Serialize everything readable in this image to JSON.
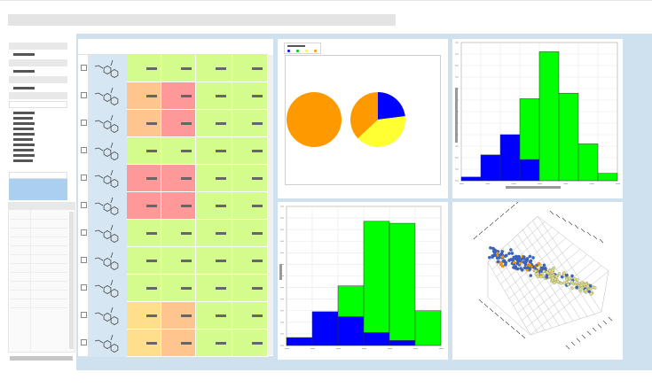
{
  "colors": {
    "accent_blue": "#abcfee",
    "panel_bg": "#cfe0ee",
    "cell_green": "#d4fc8c",
    "cell_orange": "#ffc58f",
    "cell_red": "#ff9999",
    "cell_yellow": "#ffde8c",
    "series_blue": "#0000ff",
    "series_green": "#00ff00",
    "pie_orange": "#ff9900",
    "pie_yellow": "#ffff33"
  },
  "table": {
    "rows": [
      {
        "cells": [
          "g",
          "g",
          "g",
          "g"
        ]
      },
      {
        "cells": [
          "o",
          "r",
          "g",
          "g"
        ]
      },
      {
        "cells": [
          "o",
          "r",
          "g",
          "g"
        ]
      },
      {
        "cells": [
          "g",
          "g",
          "g",
          "g"
        ]
      },
      {
        "cells": [
          "r",
          "r",
          "g",
          "g"
        ]
      },
      {
        "cells": [
          "r",
          "r",
          "g",
          "g"
        ]
      },
      {
        "cells": [
          "g",
          "g",
          "g",
          "g"
        ]
      },
      {
        "cells": [
          "g",
          "g",
          "g",
          "g"
        ]
      },
      {
        "cells": [
          "g",
          "g",
          "g",
          "g"
        ]
      },
      {
        "cells": [
          "y",
          "o",
          "g",
          "g"
        ]
      },
      {
        "cells": [
          "y",
          "o",
          "g",
          "g"
        ]
      }
    ]
  },
  "icons": {
    "molecule": "molecule-structure-icon",
    "checkbox": "checkbox-icon"
  },
  "chart_data": [
    {
      "type": "pie",
      "slices": [
        {
          "value": 1.0,
          "color": "#ff9900"
        }
      ]
    },
    {
      "type": "pie",
      "slices": [
        {
          "value": 0.23,
          "color": "#0000ff"
        },
        {
          "value": 0.4,
          "color": "#ffff33"
        },
        {
          "value": 0.37,
          "color": "#ff9900"
        }
      ]
    },
    {
      "type": "bar",
      "stacked": true,
      "series": [
        {
          "color": "#0000ff",
          "values": [
            0.4,
            2.8,
            5.0,
            2.3,
            0,
            0,
            0,
            0
          ]
        },
        {
          "color": "#00ff00",
          "values": [
            0,
            0,
            0,
            6.6,
            14.0,
            9.5,
            4.0,
            0.8
          ]
        }
      ],
      "ylim": [
        0,
        15
      ],
      "grid": true
    },
    {
      "type": "bar",
      "stacked": true,
      "series": [
        {
          "color": "#0000ff",
          "values": [
            0.8,
            3.4,
            2.9,
            1.3,
            0.5,
            0
          ]
        },
        {
          "color": "#00ff00",
          "values": [
            0,
            0,
            3.1,
            11.2,
            11.8,
            3.5
          ]
        }
      ],
      "ylim": [
        0,
        14
      ],
      "grid": true
    },
    {
      "type": "scatter",
      "projection": "3d",
      "series": [
        {
          "color": "#3366cc"
        },
        {
          "color": "#ff9900"
        },
        {
          "color": "#dddd88"
        }
      ]
    }
  ]
}
